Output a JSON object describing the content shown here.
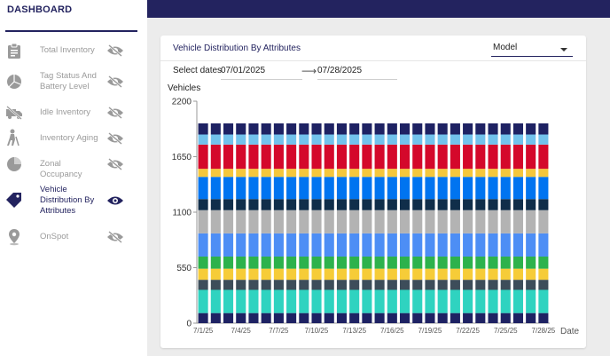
{
  "sidebar": {
    "title": "DASHBOARD",
    "items": [
      {
        "label": "Total Inventory",
        "icon": "clipboard-icon",
        "visibility": "hidden"
      },
      {
        "label": "Tag Status And Battery Level",
        "icon": "pie-chart-icon",
        "visibility": "hidden"
      },
      {
        "label": "Idle Inventory",
        "icon": "truck-off-icon",
        "visibility": "hidden"
      },
      {
        "label": "Inventory Aging",
        "icon": "elderly-person-icon",
        "visibility": "hidden"
      },
      {
        "label": "Zonal Occupancy",
        "icon": "pie-quarter-icon",
        "visibility": "hidden"
      },
      {
        "label": "Vehicle Distribution By Attributes",
        "icon": "tag-icon",
        "visibility": "visible",
        "active": true
      },
      {
        "label": "OnSpot",
        "icon": "location-pin-icon",
        "visibility": "hidden"
      }
    ]
  },
  "panel": {
    "title": "Vehicle Distribution By Attributes",
    "attribute_select": {
      "value": "Model"
    },
    "select_dates_label": "Select dates",
    "start_date": "07/01/2025",
    "end_date": "07/28/2025"
  },
  "colors": {
    "navy": "#23235f",
    "segments": [
      "#1e2263",
      "#2fd3c0",
      "#3d4d5a",
      "#f6cc38",
      "#2db24c",
      "#4d8ef5",
      "#b3b3b3",
      "#102e4a",
      "#0074f0",
      "#f5c73c",
      "#d4082b",
      "#72c2ec"
    ]
  },
  "chart_data": {
    "type": "bar",
    "stacked": true,
    "ylabel": "Vehicles",
    "xlabel": "Date",
    "ylim": [
      0,
      2200
    ],
    "yticks": [
      0,
      550,
      1100,
      1650,
      2200
    ],
    "categories": [
      "7/1/25",
      "7/2/25",
      "7/3/25",
      "7/4/25",
      "7/5/25",
      "7/6/25",
      "7/7/25",
      "7/8/25",
      "7/9/25",
      "7/10/25",
      "7/11/25",
      "7/12/25",
      "7/13/25",
      "7/14/25",
      "7/15/25",
      "7/16/25",
      "7/17/25",
      "7/18/25",
      "7/19/25",
      "7/20/25",
      "7/21/25",
      "7/22/25",
      "7/23/25",
      "7/24/25",
      "7/25/25",
      "7/26/25",
      "7/27/25",
      "7/28/25"
    ],
    "xtick_labels": [
      "7/1/25",
      "7/4/25",
      "7/7/25",
      "7/10/25",
      "7/13/25",
      "7/16/25",
      "7/19/25",
      "7/22/25",
      "7/25/25",
      "7/28/25"
    ],
    "segment_values": [
      100,
      230,
      100,
      110,
      120,
      230,
      230,
      110,
      220,
      80,
      240,
      100,
      110
    ],
    "segment_colors": [
      "#1e2263",
      "#2fd3c0",
      "#3d4d5a",
      "#f6cc38",
      "#2db24c",
      "#4d8ef5",
      "#b3b3b3",
      "#102e4a",
      "#0074f0",
      "#f5c73c",
      "#d4082b",
      "#72c2ec",
      "#1e2263"
    ]
  }
}
